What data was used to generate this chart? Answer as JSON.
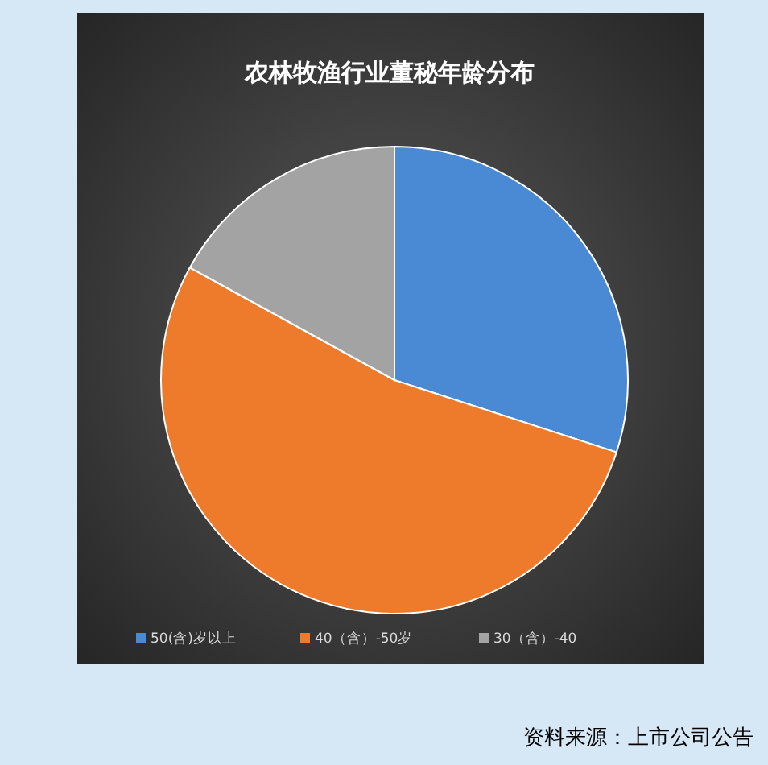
{
  "chart_data": {
    "type": "pie",
    "title": "农林牧渔行业董秘年龄分布",
    "categories": [
      "50(含)岁以上",
      "40（含）-50岁",
      "30（含）-40"
    ],
    "values": [
      30,
      53,
      17
    ],
    "colors": [
      "#4a8ad4",
      "#ee7b2c",
      "#a3a3a3"
    ],
    "legend": "bottom",
    "annotations": [
      "资料来源：上市公司公告"
    ]
  }
}
